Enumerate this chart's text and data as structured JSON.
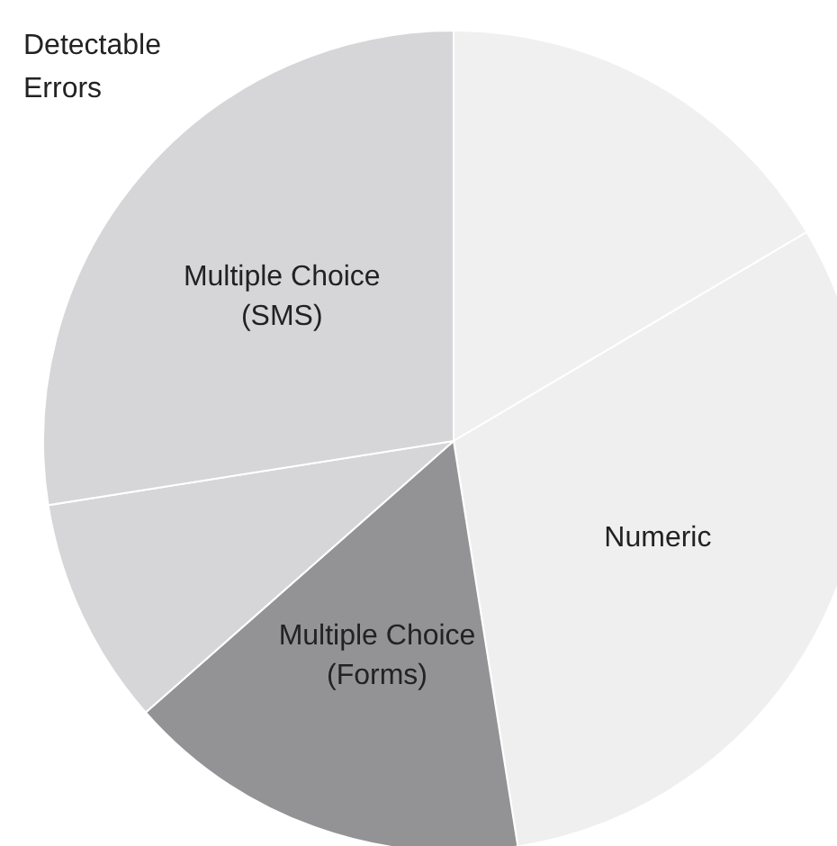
{
  "chart_data": {
    "type": "pie",
    "categories": [
      null,
      "Numeric",
      "Multiple Choice (Forms)",
      null,
      "Multiple Choice (SMS)"
    ],
    "values": [
      16.5,
      31,
      16,
      9,
      27.5
    ],
    "colors": [
      "#f0f0f0",
      "#efefef",
      "#939396",
      "#d6d6d8",
      "#d6d6d8"
    ],
    "annotations": [
      "Detectable Errors"
    ],
    "legend": false
  }
}
